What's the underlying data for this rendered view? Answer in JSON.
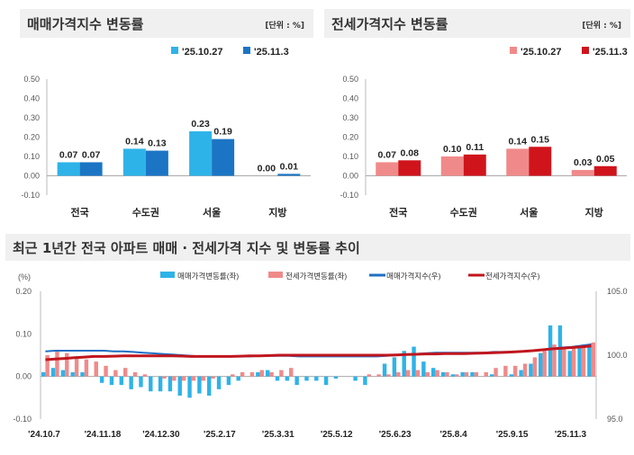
{
  "colors": {
    "sale_a": "#2eb3e8",
    "sale_b": "#1b75c4",
    "jeonse_a": "#f08a8a",
    "jeonse_b": "#d0141c",
    "sale_line": "#1f6fc4",
    "jeonse_line": "#c0161e"
  },
  "chart_data": [
    {
      "type": "bar",
      "title": "매매가격지수 변동률",
      "unit": "[단위 : %]",
      "categories": [
        "전국",
        "수도권",
        "서울",
        "지방"
      ],
      "series": [
        {
          "name": "'25.10.27",
          "values": [
            0.07,
            0.14,
            0.23,
            0.0
          ]
        },
        {
          "name": "'25.11.3",
          "values": [
            0.07,
            0.13,
            0.19,
            0.01
          ]
        }
      ],
      "yticks": [
        "0.50",
        "0.40",
        "0.30",
        "0.20",
        "0.10",
        "0.00",
        "-0.10"
      ],
      "ylim": [
        -0.1,
        0.5
      ],
      "labels": [
        [
          "0.07",
          "0.07"
        ],
        [
          "0.14",
          "0.13"
        ],
        [
          "0.23",
          "0.19"
        ],
        [
          "0.00",
          "0.01"
        ]
      ]
    },
    {
      "type": "bar",
      "title": "전세가격지수 변동률",
      "unit": "[단위 : %]",
      "categories": [
        "전국",
        "수도권",
        "서울",
        "지방"
      ],
      "series": [
        {
          "name": "'25.10.27",
          "values": [
            0.07,
            0.1,
            0.14,
            0.03
          ]
        },
        {
          "name": "'25.11.3",
          "values": [
            0.08,
            0.11,
            0.15,
            0.05
          ]
        }
      ],
      "yticks": [
        "0.50",
        "0.40",
        "0.30",
        "0.20",
        "0.10",
        "0.00",
        "-0.10"
      ],
      "ylim": [
        -0.1,
        0.5
      ],
      "labels": [
        [
          "0.07",
          "0.08"
        ],
        [
          "0.10",
          "0.11"
        ],
        [
          "0.14",
          "0.15"
        ],
        [
          "0.03",
          "0.05"
        ]
      ]
    },
    {
      "type": "bar+line",
      "title": "최근 1년간 전국 아파트 매매 · 전세가격 지수 및 변동률 추이",
      "ylabel": "(%)",
      "legend": [
        "매매가격변동률(좌)",
        "전세가격변동률(좌)",
        "매매가격지수(우)",
        "전세가격지수(우)"
      ],
      "xticks": [
        "'24.10.7",
        "'24.11.18",
        "'24.12.30",
        "'25.2.17",
        "'25.3.31",
        "'25.5.12",
        "'25.6.23",
        "'25.8.4",
        "'25.9.15",
        "'25.11.3"
      ],
      "yticks_left": [
        "0.20",
        "0.10",
        "0.00",
        "-0.10"
      ],
      "ylim_left": [
        -0.1,
        0.2
      ],
      "yticks_right": [
        "105.0",
        "100.0",
        "95.0"
      ],
      "ylim_right": [
        95,
        105
      ],
      "sale_change": [
        0.01,
        0.02,
        0.015,
        0.01,
        0.01,
        0.0,
        -0.015,
        -0.02,
        -0.02,
        -0.03,
        -0.025,
        -0.035,
        -0.035,
        -0.035,
        -0.045,
        -0.05,
        -0.04,
        -0.045,
        -0.03,
        -0.02,
        -0.01,
        0.0,
        0.01,
        0.015,
        -0.01,
        -0.01,
        -0.02,
        -0.01,
        -0.01,
        -0.02,
        -0.005,
        0.0,
        -0.01,
        -0.02,
        0.0,
        0.03,
        0.045,
        0.06,
        0.07,
        0.035,
        0.02,
        0.01,
        0.005,
        0.01,
        0.01,
        0.0,
        0.005,
        0.0,
        0.005,
        0.015,
        0.03,
        0.055,
        0.12,
        0.12,
        0.06,
        0.07,
        0.07
      ],
      "jeonse_change": [
        0.05,
        0.06,
        0.055,
        0.045,
        0.04,
        0.035,
        0.025,
        0.015,
        0.02,
        0.01,
        0.005,
        0.0,
        -0.005,
        -0.01,
        -0.01,
        -0.01,
        -0.01,
        -0.005,
        0.0,
        0.005,
        0.01,
        0.01,
        0.015,
        0.01,
        0.015,
        0.02,
        0.0,
        0.0,
        0.0,
        0.0,
        0.0,
        0.0,
        0.0,
        0.005,
        0.005,
        0.005,
        0.01,
        0.015,
        0.015,
        0.01,
        0.015,
        0.01,
        0.005,
        0.01,
        0.01,
        0.01,
        0.02,
        0.025,
        0.025,
        0.03,
        0.045,
        0.06,
        0.075,
        0.07,
        0.07,
        0.075,
        0.08
      ],
      "sale_index": [
        100.3,
        100.35,
        100.35,
        100.35,
        100.35,
        100.35,
        100.35,
        100.3,
        100.3,
        100.25,
        100.2,
        100.15,
        100.1,
        100.05,
        100.0,
        99.95,
        99.9,
        99.9,
        99.9,
        99.9,
        99.9,
        99.9,
        99.95,
        99.95,
        99.95,
        99.95,
        99.9,
        99.9,
        99.9,
        99.9,
        99.9,
        99.9,
        99.9,
        99.9,
        99.9,
        99.95,
        100.0,
        100.05,
        100.1,
        100.15,
        100.2,
        100.2,
        100.2,
        100.2,
        100.2,
        100.2,
        100.25,
        100.25,
        100.25,
        100.3,
        100.35,
        100.4,
        100.5,
        100.6,
        100.65,
        100.75,
        100.85
      ],
      "jeonse_index": [
        99.65,
        99.7,
        99.75,
        99.8,
        99.85,
        99.9,
        99.9,
        99.92,
        99.95,
        99.95,
        99.95,
        99.95,
        99.95,
        99.95,
        99.93,
        99.9,
        99.9,
        99.9,
        99.9,
        99.9,
        99.92,
        99.95,
        99.95,
        99.97,
        100.0,
        100.0,
        100.0,
        100.0,
        100.0,
        100.0,
        100.0,
        100.0,
        100.0,
        100.0,
        100.0,
        100.0,
        100.02,
        100.05,
        100.07,
        100.1,
        100.1,
        100.12,
        100.12,
        100.13,
        100.15,
        100.17,
        100.2,
        100.22,
        100.25,
        100.3,
        100.35,
        100.42,
        100.5,
        100.55,
        100.6,
        100.65,
        100.72
      ]
    }
  ]
}
